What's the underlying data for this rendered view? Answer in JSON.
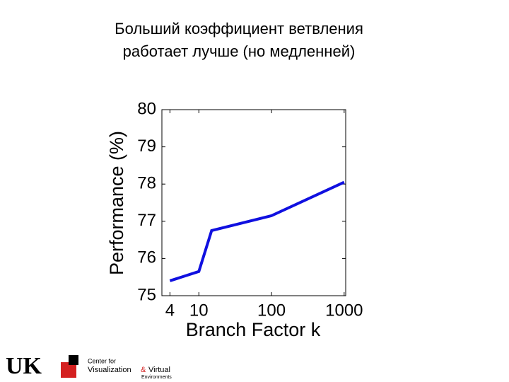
{
  "slide_title": [
    "Больший коэффициент ветвления",
    "работает лучше (но медленней)"
  ],
  "chart_data": {
    "type": "line",
    "x_label": "Branch Factor k",
    "y_label": "Performance (%)",
    "x": [
      4,
      10,
      15,
      100,
      1000
    ],
    "series": [
      {
        "color": "#1010e0",
        "values": [
          75.4,
          75.65,
          76.75,
          77.15,
          78.05
        ]
      }
    ],
    "xscale": "log",
    "xlim": [
      3.1,
      1050
    ],
    "ylim": [
      75,
      80
    ],
    "xticks": [
      4,
      10,
      100,
      1000
    ],
    "yticks": [
      75,
      76,
      77,
      78,
      79,
      80
    ]
  },
  "logos": {
    "uk": "UK",
    "center_lines": [
      "Center for",
      "Visualization",
      "&",
      "Virtual",
      "Environments"
    ]
  }
}
